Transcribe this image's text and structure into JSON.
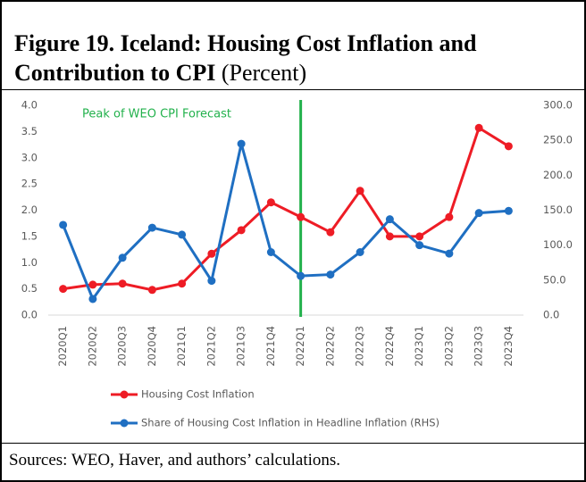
{
  "chart_data": {
    "type": "line",
    "title": "Figure 19. Iceland: Housing Cost Inflation and Contribution to CPI",
    "subtitle": "(Percent)",
    "source": "Sources: WEO, Haver, and authors’ calculations.",
    "annotation": {
      "text": "Peak of WEO CPI Forecast",
      "x": "2022Q1",
      "color": "#22b14c"
    },
    "categories": [
      "2020Q1",
      "2020Q2",
      "2020Q3",
      "2020Q4",
      "2021Q1",
      "2021Q2",
      "2021Q3",
      "2021Q4",
      "2022Q1",
      "2022Q2",
      "2022Q3",
      "2022Q4",
      "2023Q1",
      "2023Q2",
      "2023Q3",
      "2023Q4"
    ],
    "series": [
      {
        "name": "Housing Cost Inflation",
        "color": "#ee1c25",
        "values": [
          0.5,
          0.58,
          0.6,
          0.48,
          0.6,
          1.17,
          1.62,
          2.15,
          1.87,
          1.58,
          2.37,
          1.5,
          1.5,
          1.87,
          3.57,
          3.22
        ]
      },
      {
        "name": "Share of Housing Cost Inflation in Headline Inflation (RHS)",
        "color": "#1f6fc2",
        "axis": "y2",
        "values": [
          129,
          23,
          82,
          125,
          115,
          49,
          245,
          90,
          56,
          58,
          90,
          137,
          100,
          88,
          146,
          149
        ]
      }
    ],
    "ylim": [
      0,
      4
    ],
    "yticks": [
      {
        "value": 0,
        "label": "0.0"
      },
      {
        "value": 0.5,
        "label": "0.5"
      },
      {
        "value": 1,
        "label": "1.0"
      },
      {
        "value": 1.5,
        "label": "1.5"
      },
      {
        "value": 2,
        "label": "2.0"
      },
      {
        "value": 2.5,
        "label": "2.5"
      },
      {
        "value": 3,
        "label": "3.0"
      },
      {
        "value": 3.5,
        "label": "3.5"
      },
      {
        "value": 4,
        "label": "4.0"
      }
    ],
    "y2lim": [
      0,
      300
    ],
    "y2ticks": [
      {
        "value": 0,
        "label": "0.0"
      },
      {
        "value": 50,
        "label": "50.0"
      },
      {
        "value": 100,
        "label": "100.0"
      },
      {
        "value": 150,
        "label": "150.0"
      },
      {
        "value": 200,
        "label": "200.0"
      },
      {
        "value": 250,
        "label": "250.0"
      },
      {
        "value": 300,
        "label": "300.0"
      }
    ],
    "grid": false
  }
}
